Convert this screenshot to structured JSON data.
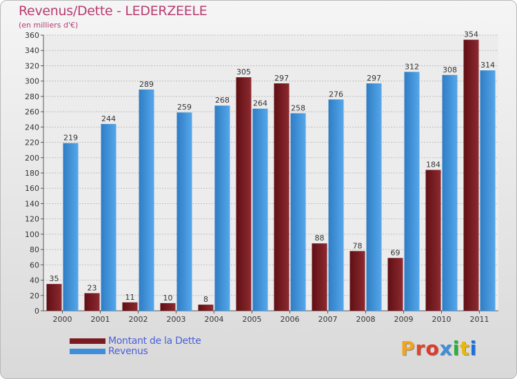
{
  "title": "Revenus/Dette - LEDERZEELE",
  "subtitle": "(en milliers d'€)",
  "logo": {
    "text": "Proxiti",
    "letter_colors": [
      "#f2a51c",
      "#e0462c",
      "#e03a2b",
      "#3f8fd8",
      "#2fae3c",
      "#e8b80f",
      "#1d6fe0"
    ]
  },
  "colors": {
    "dette": "#7b1a20",
    "revenus": "#3d8fd9",
    "title": "#b83b72",
    "legend_text": "#4b5fd8"
  },
  "chart_data": {
    "type": "bar",
    "title": "Revenus/Dette - LEDERZEELE",
    "subtitle": "(en milliers d'€)",
    "categories": [
      "2000",
      "2001",
      "2002",
      "2003",
      "2004",
      "2005",
      "2006",
      "2007",
      "2008",
      "2009",
      "2010",
      "2011"
    ],
    "series": [
      {
        "name": "Montant de la Dette",
        "color": "#7b1a20",
        "values": [
          35,
          23,
          11,
          10,
          8,
          305,
          297,
          88,
          78,
          69,
          184,
          354
        ]
      },
      {
        "name": "Revenus",
        "color": "#3d8fd9",
        "values": [
          219,
          244,
          289,
          259,
          268,
          264,
          258,
          276,
          297,
          312,
          308,
          314
        ]
      }
    ],
    "ylim": [
      0,
      360
    ],
    "ytick_step": 20,
    "grid": true,
    "legend_position": "bottom-left",
    "data_labels": true
  }
}
